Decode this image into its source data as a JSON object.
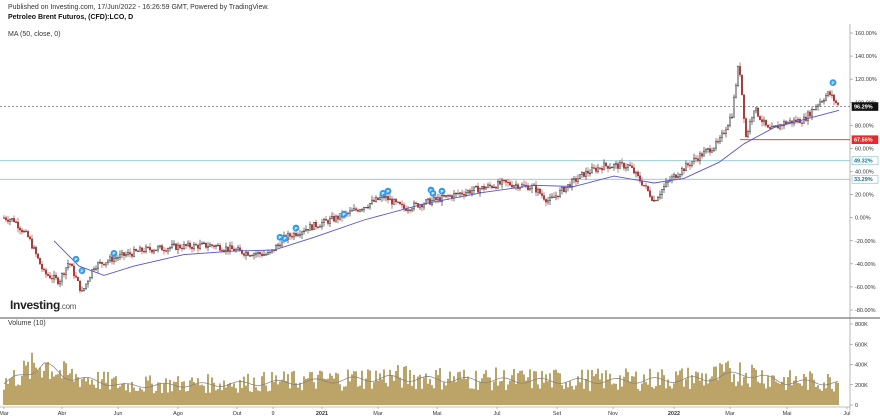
{
  "header": {
    "published": "Published on Investing.com, 17/Jun/2022 - 16:26:59 GMT, Powered by TradingView.",
    "symbol": "Petroleo Brent Futuros, (CFD):LCO, D",
    "ma_label": "MA (50, close, 0)",
    "volume_label": "Volume (10)"
  },
  "logo": {
    "text": "Investing",
    "suffix": ".com"
  },
  "colors": {
    "up": "#1a1a1a",
    "down": "#b03030",
    "ma": "#5555cc",
    "volume": "#b59a58",
    "volume_ma": "#7f7f7f",
    "level_red": "#e32b2b",
    "level_teal": "#7fb9c8",
    "label_dark": "#111111",
    "p_marker": "#3399ee"
  },
  "chart_data": [
    {
      "type": "line",
      "title": "Petroleo Brent Futuros, (CFD):LCO, D",
      "y_axis_ticks": [
        "160.00%",
        "140.00%",
        "120.00%",
        "100.00%",
        "80.00%",
        "60.00%",
        "40.00%",
        "20.00%",
        "0.00%",
        "-20.00%",
        "-40.00%",
        "-60.00%",
        "-80.00%"
      ],
      "ylim": [
        -85,
        165
      ],
      "x_axis_ticks": [
        "Mar",
        "Abr",
        "Jun",
        "Ago",
        "Out",
        "9",
        "2021",
        "Mar",
        "Mai",
        "Jul",
        "Set",
        "Nov",
        "2022",
        "Mar",
        "Mai",
        "Jul"
      ],
      "price_keyframes": [
        {
          "t": 0,
          "v": 0
        },
        {
          "t": 10,
          "v": -2
        },
        {
          "t": 25,
          "v": -18
        },
        {
          "t": 40,
          "v": -48
        },
        {
          "t": 55,
          "v": -55
        },
        {
          "t": 65,
          "v": -38
        },
        {
          "t": 78,
          "v": -65
        },
        {
          "t": 90,
          "v": -42
        },
        {
          "t": 110,
          "v": -35
        },
        {
          "t": 140,
          "v": -28
        },
        {
          "t": 175,
          "v": -25
        },
        {
          "t": 210,
          "v": -24
        },
        {
          "t": 240,
          "v": -30
        },
        {
          "t": 265,
          "v": -32
        },
        {
          "t": 280,
          "v": -18
        },
        {
          "t": 300,
          "v": -10
        },
        {
          "t": 340,
          "v": 2
        },
        {
          "t": 380,
          "v": 18
        },
        {
          "t": 400,
          "v": 8
        },
        {
          "t": 430,
          "v": 15
        },
        {
          "t": 460,
          "v": 22
        },
        {
          "t": 500,
          "v": 30
        },
        {
          "t": 530,
          "v": 26
        },
        {
          "t": 545,
          "v": 14
        },
        {
          "t": 560,
          "v": 25
        },
        {
          "t": 580,
          "v": 38
        },
        {
          "t": 600,
          "v": 45
        },
        {
          "t": 625,
          "v": 45
        },
        {
          "t": 640,
          "v": 28
        },
        {
          "t": 650,
          "v": 15
        },
        {
          "t": 665,
          "v": 32
        },
        {
          "t": 690,
          "v": 50
        },
        {
          "t": 715,
          "v": 65
        },
        {
          "t": 728,
          "v": 90
        },
        {
          "t": 735,
          "v": 135
        },
        {
          "t": 742,
          "v": 70
        },
        {
          "t": 750,
          "v": 95
        },
        {
          "t": 765,
          "v": 75
        },
        {
          "t": 780,
          "v": 82
        },
        {
          "t": 800,
          "v": 85
        },
        {
          "t": 815,
          "v": 100
        },
        {
          "t": 825,
          "v": 108
        },
        {
          "t": 835,
          "v": 96
        }
      ],
      "ma_keyframes": [
        {
          "t": 50,
          "v": -20
        },
        {
          "t": 75,
          "v": -42
        },
        {
          "t": 100,
          "v": -50
        },
        {
          "t": 130,
          "v": -42
        },
        {
          "t": 180,
          "v": -32
        },
        {
          "t": 230,
          "v": -29
        },
        {
          "t": 270,
          "v": -28
        },
        {
          "t": 310,
          "v": -17
        },
        {
          "t": 360,
          "v": -2
        },
        {
          "t": 420,
          "v": 12
        },
        {
          "t": 480,
          "v": 22
        },
        {
          "t": 530,
          "v": 28
        },
        {
          "t": 570,
          "v": 27
        },
        {
          "t": 610,
          "v": 36
        },
        {
          "t": 650,
          "v": 30
        },
        {
          "t": 680,
          "v": 34
        },
        {
          "t": 715,
          "v": 48
        },
        {
          "t": 740,
          "v": 64
        },
        {
          "t": 770,
          "v": 78
        },
        {
          "t": 800,
          "v": 85
        },
        {
          "t": 835,
          "v": 93
        }
      ],
      "p_markers": [
        {
          "t": 72,
          "v": -36
        },
        {
          "t": 78,
          "v": -46
        },
        {
          "t": 110,
          "v": -31
        },
        {
          "t": 276,
          "v": -17
        },
        {
          "t": 281,
          "v": -18
        },
        {
          "t": 292,
          "v": -9
        },
        {
          "t": 340,
          "v": 3
        },
        {
          "t": 379,
          "v": 21
        },
        {
          "t": 384,
          "v": 23
        },
        {
          "t": 427,
          "v": 24
        },
        {
          "t": 429,
          "v": 21
        },
        {
          "t": 438,
          "v": 23
        },
        {
          "t": 829,
          "v": 117
        }
      ],
      "levels": [
        {
          "value": 96.29,
          "label": "96.29%",
          "style": "dark",
          "dashed": true
        },
        {
          "value": 67.56,
          "label": "67.56%",
          "style": "red",
          "dashed": false
        },
        {
          "value": 49.32,
          "label": "49.32%",
          "style": "teal",
          "dashed": false
        },
        {
          "value": 33.29,
          "label": "33.29%",
          "style": "teal",
          "dashed": false
        }
      ]
    },
    {
      "type": "bar",
      "title": "Volume (10)",
      "y_axis_ticks": [
        "800K",
        "600K",
        "400K",
        "200K",
        "0"
      ],
      "ylim": [
        0,
        830000
      ],
      "volume_keyframes": [
        {
          "t": 0,
          "v": 220000
        },
        {
          "t": 40,
          "v": 420000
        },
        {
          "t": 60,
          "v": 300000
        },
        {
          "t": 120,
          "v": 200000
        },
        {
          "t": 200,
          "v": 210000
        },
        {
          "t": 300,
          "v": 240000
        },
        {
          "t": 380,
          "v": 280000
        },
        {
          "t": 460,
          "v": 260000
        },
        {
          "t": 540,
          "v": 250000
        },
        {
          "t": 620,
          "v": 250000
        },
        {
          "t": 700,
          "v": 270000
        },
        {
          "t": 740,
          "v": 330000
        },
        {
          "t": 780,
          "v": 240000
        },
        {
          "t": 835,
          "v": 230000
        }
      ]
    }
  ]
}
